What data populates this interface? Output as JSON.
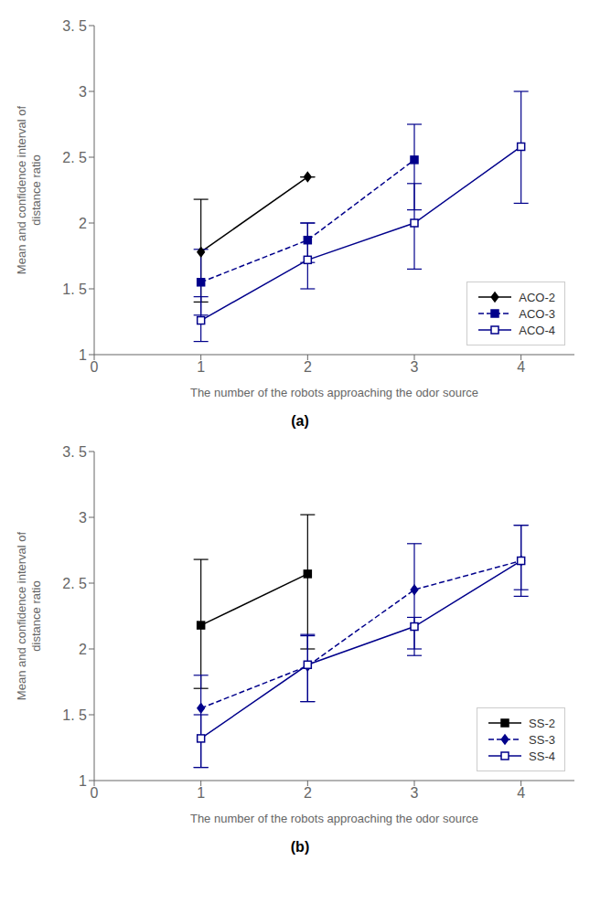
{
  "chart_data": [
    {
      "type": "line",
      "title": "(a)",
      "xlabel": "The number of the robots approaching the odor source",
      "ylabel": "Mean and confidence interval of\ndistance ratio",
      "xlim": [
        0,
        4.5
      ],
      "ylim": [
        1.0,
        3.5
      ],
      "xticks": [
        0,
        1,
        2,
        3,
        4
      ],
      "yticks": [
        1,
        {
          "value": 1.5,
          "label": "1. 5"
        },
        2,
        {
          "value": 2.5,
          "label": "2. 5"
        },
        3,
        {
          "value": 3.5,
          "label": "3. 5"
        }
      ],
      "legend": "lower right",
      "series": [
        {
          "name": "ACO-2",
          "color": "#000000",
          "line_style": "solid",
          "marker": "diamond",
          "x": [
            1,
            2
          ],
          "values": [
            1.78,
            2.35
          ],
          "error_low": [
            0.38,
            0.0
          ],
          "error_high": [
            0.4,
            0.0
          ]
        },
        {
          "name": "ACO-3",
          "color": "#00008B",
          "line_style": "dashed",
          "marker": "square",
          "x": [
            1,
            2,
            3
          ],
          "values": [
            1.55,
            1.87,
            2.48
          ],
          "error_low": [
            0.25,
            0.17,
            0.38
          ],
          "error_high": [
            0.25,
            0.13,
            0.27
          ]
        },
        {
          "name": "ACO-4",
          "color": "#00008B",
          "line_style": "solid",
          "marker": "open-square",
          "x": [
            1,
            2,
            3,
            4
          ],
          "values": [
            1.26,
            1.72,
            2.0,
            2.58
          ],
          "error_low": [
            0.16,
            0.22,
            0.35,
            0.43
          ],
          "error_high": [
            0.18,
            0.28,
            0.3,
            0.42
          ]
        }
      ]
    },
    {
      "type": "line",
      "title": "(b)",
      "xlabel": "The number of the robots approaching the odor source",
      "ylabel": "Mean and confidence interval of\ndistance ratio",
      "xlim": [
        0,
        4.5
      ],
      "ylim": [
        1.0,
        3.5
      ],
      "xticks": [
        0,
        1,
        2,
        3,
        4
      ],
      "yticks": [
        1,
        {
          "value": 1.5,
          "label": "1. 5"
        },
        2,
        {
          "value": 2.5,
          "label": "2. 5"
        },
        3,
        {
          "value": 3.5,
          "label": "3. 5"
        }
      ],
      "legend": "lower right",
      "series": [
        {
          "name": "SS-2",
          "color": "#000000",
          "line_style": "solid",
          "marker": "square",
          "x": [
            1,
            2
          ],
          "values": [
            2.18,
            2.57
          ],
          "error_low": [
            0.48,
            0.57
          ],
          "error_high": [
            0.5,
            0.45
          ]
        },
        {
          "name": "SS-3",
          "color": "#00008B",
          "line_style": "dashed",
          "marker": "diamond",
          "x": [
            1,
            2,
            3,
            4
          ],
          "values": [
            1.55,
            1.87,
            2.45,
            2.67
          ],
          "error_low": [
            0.45,
            0.27,
            0.45,
            0.27
          ],
          "error_high": [
            0.25,
            0.23,
            0.35,
            0.27
          ]
        },
        {
          "name": "SS-4",
          "color": "#00008B",
          "line_style": "solid",
          "marker": "open-square",
          "x": [
            1,
            2,
            3,
            4
          ],
          "values": [
            1.32,
            1.88,
            2.17,
            2.67
          ],
          "error_low": [
            0.22,
            0.28,
            0.22,
            0.22
          ],
          "error_high": [
            0.18,
            0.23,
            0.07,
            0.27
          ]
        }
      ]
    }
  ]
}
